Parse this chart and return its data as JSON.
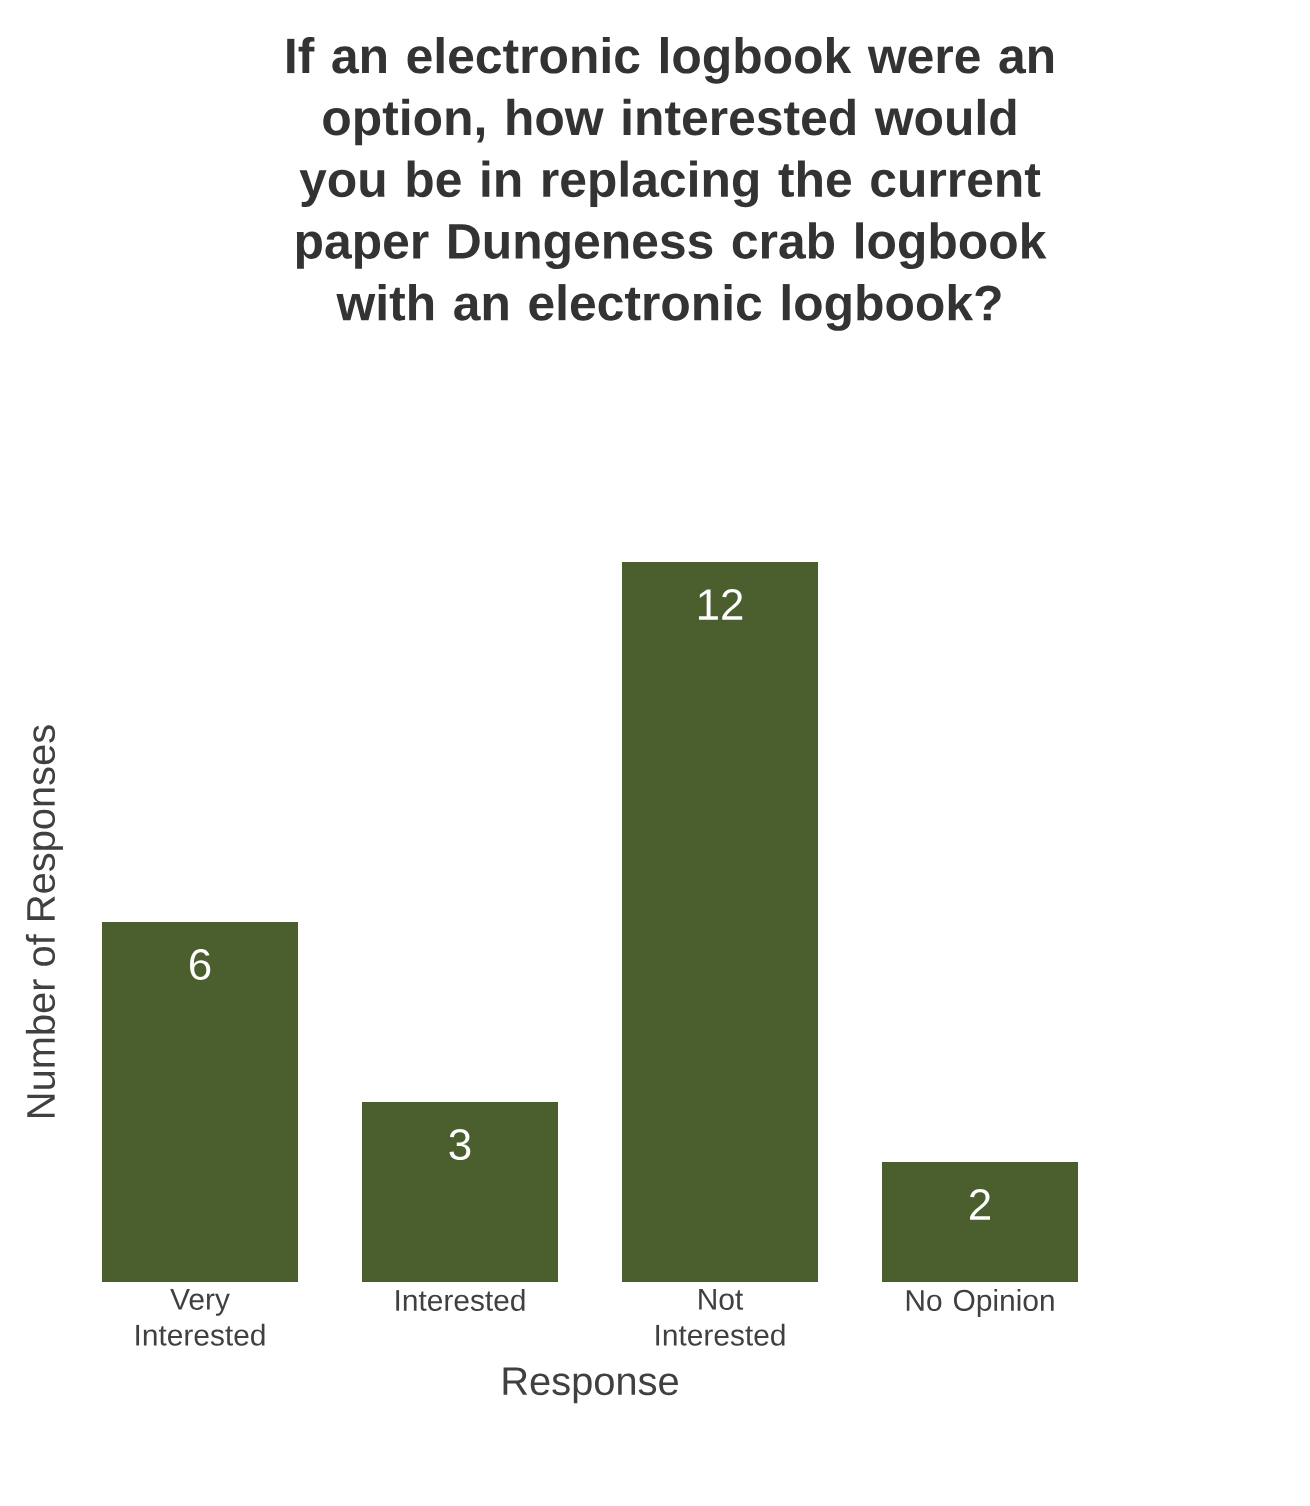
{
  "chart_data": {
    "type": "bar",
    "title": "If an electronic logbook were an option, how interested would you be in replacing the current paper Dungeness crab logbook with an electronic logbook?",
    "xlabel": "Response",
    "ylabel": "Number of Responses",
    "categories": [
      "Very Interested",
      "Interested",
      "Not Interested",
      "No Opinion"
    ],
    "values": [
      6,
      3,
      12,
      2
    ],
    "color": "#4b5e2d",
    "data_labels": true
  }
}
